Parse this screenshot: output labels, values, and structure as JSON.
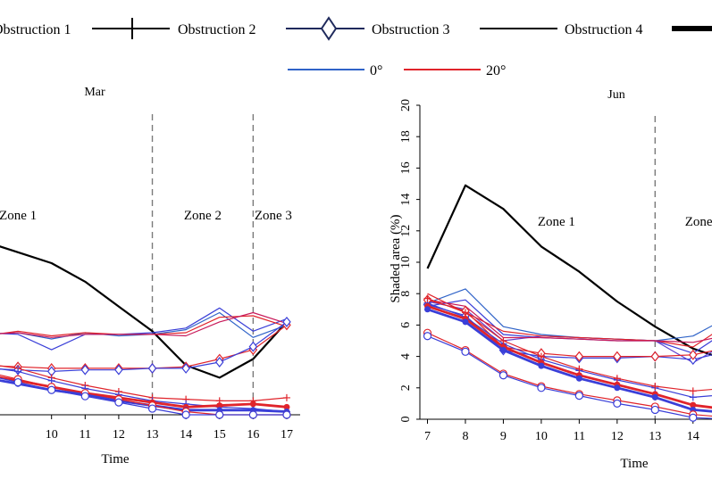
{
  "legend": {
    "items": [
      {
        "label": "Obstruction 1",
        "style": "plain",
        "color": "#000000"
      },
      {
        "label": "Obstruction 2",
        "style": "plus",
        "color": "#000000"
      },
      {
        "label": "Obstruction 3",
        "style": "diamond",
        "color": "#1f2a5c"
      },
      {
        "label": "Obstruction 4",
        "style": "plain",
        "color": "#000000"
      },
      {
        "label": "",
        "style": "thick",
        "color": "#000000"
      }
    ],
    "angles": [
      {
        "label": "0°",
        "color": "#2f63c8"
      },
      {
        "label": "20°",
        "color": "#e0242b"
      }
    ]
  },
  "chart_data": [
    {
      "type": "line",
      "title": "Mar",
      "xlabel": "Time",
      "ylabel": "",
      "xlim": [
        8.2,
        17.4
      ],
      "ylim": [
        0,
        20
      ],
      "xticks": [
        10,
        11,
        12,
        13,
        14,
        15,
        16,
        17
      ],
      "zones": [
        {
          "label": "Zone 1",
          "x": 9.0
        },
        {
          "label": "Zone 2",
          "x": 14.5
        },
        {
          "label": "Zone 3",
          "x": 16.6
        }
      ],
      "zone_dividers": [
        13,
        16
      ],
      "series": [
        {
          "name": "Obstruction 4 (black)",
          "color": "#000000",
          "width": 2.2,
          "marker": "none",
          "x": [
            8,
            9,
            10,
            11,
            12,
            13,
            14,
            15,
            16,
            17
          ],
          "y": [
            11.2,
            10.5,
            9.8,
            8.6,
            7.0,
            5.4,
            3.2,
            2.4,
            3.6,
            6.0
          ]
        },
        {
          "name": "0° band A",
          "color": "#2f63c8",
          "width": 1.2,
          "marker": "none",
          "x": [
            8,
            9,
            10,
            11,
            12,
            13,
            14,
            15,
            16,
            17
          ],
          "y": [
            5.2,
            5.3,
            4.9,
            5.3,
            5.1,
            5.2,
            5.5,
            6.6,
            5.0,
            5.8
          ]
        },
        {
          "name": "0° band B",
          "color": "#3a3fd8",
          "width": 1.2,
          "marker": "none",
          "x": [
            8,
            9,
            10,
            11,
            12,
            13,
            14,
            15,
            16,
            17
          ],
          "y": [
            5.3,
            5.2,
            4.2,
            5.2,
            5.2,
            5.3,
            5.6,
            6.9,
            5.4,
            6.2
          ]
        },
        {
          "name": "20° band A",
          "color": "#e0242b",
          "width": 1.2,
          "marker": "none",
          "x": [
            8,
            9,
            10,
            11,
            12,
            13,
            14,
            15,
            16,
            17
          ],
          "y": [
            5.1,
            5.4,
            5.1,
            5.3,
            5.2,
            5.2,
            5.3,
            6.3,
            6.4,
            5.7
          ]
        },
        {
          "name": "20° band B",
          "color": "#c81a5a",
          "width": 1.2,
          "marker": "none",
          "x": [
            8,
            9,
            10,
            11,
            12,
            13,
            14,
            15,
            16,
            17
          ],
          "y": [
            5.2,
            5.3,
            5.0,
            5.2,
            5.2,
            5.2,
            5.1,
            6.0,
            6.6,
            5.9
          ]
        },
        {
          "name": "Obstruction 3 (20°)",
          "color": "#e0242b",
          "width": 1.2,
          "marker": "diamond",
          "x": [
            8,
            9,
            10,
            11,
            12,
            13,
            14,
            15,
            16,
            17
          ],
          "y": [
            3.2,
            3.1,
            3.0,
            3.0,
            3.0,
            3.0,
            3.1,
            3.6,
            4.2,
            5.8
          ]
        },
        {
          "name": "Obstruction 3 (0°)",
          "color": "#3a3fd8",
          "width": 1.2,
          "marker": "diamond",
          "x": [
            8,
            9,
            10,
            11,
            12,
            13,
            14,
            15,
            16,
            17
          ],
          "y": [
            3.0,
            2.9,
            2.8,
            2.9,
            2.9,
            3.0,
            3.0,
            3.4,
            4.4,
            6.0
          ]
        },
        {
          "name": "Obstruction 2 (20°)",
          "color": "#e0242b",
          "width": 1.2,
          "marker": "plus",
          "x": [
            8,
            9,
            10,
            11,
            12,
            13,
            14,
            15,
            16,
            17
          ],
          "y": [
            3.3,
            3.0,
            2.4,
            1.9,
            1.5,
            1.1,
            1.0,
            0.9,
            0.9,
            1.1
          ]
        },
        {
          "name": "Obstruction 2 (0°)",
          "color": "#3a3fd8",
          "width": 1.2,
          "marker": "plus",
          "x": [
            8,
            9,
            10,
            11,
            12,
            13,
            14,
            15,
            16,
            17
          ],
          "y": [
            3.1,
            2.8,
            2.2,
            1.7,
            1.3,
            0.9,
            0.7,
            0.5,
            0.4,
            0.2
          ]
        },
        {
          "name": "Thick (20°)",
          "color": "#e0242b",
          "width": 2.8,
          "marker": "dot",
          "x": [
            8,
            9,
            10,
            11,
            12,
            13,
            14,
            15,
            16,
            17
          ],
          "y": [
            2.6,
            2.2,
            1.8,
            1.4,
            1.1,
            0.8,
            0.5,
            0.6,
            0.7,
            0.5
          ]
        },
        {
          "name": "Thick (0°)",
          "color": "#3a3fd8",
          "width": 2.8,
          "marker": "dot",
          "x": [
            8,
            9,
            10,
            11,
            12,
            13,
            14,
            15,
            16,
            17
          ],
          "y": [
            2.4,
            2.0,
            1.6,
            1.3,
            0.9,
            0.6,
            0.3,
            0.3,
            0.3,
            0.2
          ]
        },
        {
          "name": "Obstruction 1 (20°)",
          "color": "#e0242b",
          "width": 1.2,
          "marker": "circle",
          "x": [
            8,
            9,
            10,
            11,
            12,
            13,
            14,
            15,
            16,
            17
          ],
          "y": [
            2.8,
            2.3,
            1.8,
            1.4,
            1.0,
            0.6,
            0.2,
            0.0,
            0.0,
            0.0
          ]
        },
        {
          "name": "Obstruction 1 (0°)",
          "color": "#3a3fd8",
          "width": 1.2,
          "marker": "circle",
          "x": [
            8,
            9,
            10,
            11,
            12,
            13,
            14,
            15,
            16,
            17
          ],
          "y": [
            2.6,
            2.1,
            1.6,
            1.2,
            0.8,
            0.4,
            0.0,
            0.0,
            0.0,
            0.0
          ]
        }
      ]
    },
    {
      "type": "line",
      "title": "Jun",
      "xlabel": "Time",
      "ylabel": "Shaded area (%)",
      "xlim": [
        6.8,
        14.5
      ],
      "ylim": [
        0,
        20
      ],
      "xticks": [
        7,
        8,
        9,
        10,
        11,
        12,
        13,
        14
      ],
      "yticks": [
        0,
        2,
        4,
        6,
        8,
        10,
        12,
        14,
        16,
        18,
        20
      ],
      "zones": [
        {
          "label": "Zone 1",
          "x": 10.4
        },
        {
          "label": "Zone",
          "x": 14.15
        }
      ],
      "zone_dividers": [
        13
      ],
      "series": [
        {
          "name": "Obstruction 4 (black)",
          "color": "#000000",
          "width": 2.2,
          "marker": "none",
          "x": [
            7,
            8,
            9,
            10,
            11,
            12,
            13,
            14,
            15
          ],
          "y": [
            9.6,
            14.9,
            13.4,
            11.0,
            9.4,
            7.5,
            5.9,
            4.5,
            3.7
          ]
        },
        {
          "name": "0° band A",
          "color": "#2f63c8",
          "width": 1.2,
          "marker": "none",
          "x": [
            7,
            8,
            9,
            10,
            11,
            12,
            13,
            14,
            15
          ],
          "y": [
            7.4,
            8.3,
            5.9,
            5.4,
            5.2,
            5.1,
            5.0,
            5.3,
            6.6
          ]
        },
        {
          "name": "0° band B",
          "color": "#3a3fd8",
          "width": 1.2,
          "marker": "none",
          "x": [
            7,
            8,
            9,
            10,
            11,
            12,
            13,
            14,
            15
          ],
          "y": [
            7.2,
            7.6,
            5.4,
            5.2,
            5.1,
            5.0,
            5.0,
            4.2,
            5.8
          ]
        },
        {
          "name": "0° band C",
          "color": "#5f3fd0",
          "width": 1.2,
          "marker": "none",
          "x": [
            7,
            8,
            9,
            10,
            11,
            12,
            13,
            14,
            15
          ],
          "y": [
            7.5,
            7.0,
            5.0,
            5.3,
            5.2,
            5.1,
            5.0,
            3.6,
            5.0
          ]
        },
        {
          "name": "20° band A",
          "color": "#e0242b",
          "width": 1.2,
          "marker": "none",
          "x": [
            7,
            8,
            9,
            10,
            11,
            12,
            13,
            14,
            15
          ],
          "y": [
            8.0,
            6.8,
            5.6,
            5.3,
            5.2,
            5.1,
            5.0,
            4.6,
            6.2
          ]
        },
        {
          "name": "20° band B",
          "color": "#c81a5a",
          "width": 1.2,
          "marker": "none",
          "x": [
            7,
            8,
            9,
            10,
            11,
            12,
            13,
            14,
            15
          ],
          "y": [
            7.6,
            7.2,
            5.2,
            5.2,
            5.1,
            5.0,
            5.0,
            4.9,
            5.4
          ]
        },
        {
          "name": "Obstruction 3 (0°)",
          "color": "#3a3fd8",
          "width": 1.2,
          "marker": "diamond",
          "x": [
            7,
            8,
            9,
            10,
            11,
            12,
            13,
            14,
            15
          ],
          "y": [
            7.3,
            6.6,
            4.4,
            4.0,
            3.9,
            3.9,
            4.0,
            3.8,
            4.4
          ]
        },
        {
          "name": "Obstruction 3 (20°)",
          "color": "#e0242b",
          "width": 1.2,
          "marker": "diamond",
          "x": [
            7,
            8,
            9,
            10,
            11,
            12,
            13,
            14,
            15
          ],
          "y": [
            7.6,
            6.9,
            4.6,
            4.2,
            4.0,
            4.0,
            4.0,
            4.1,
            4.6
          ]
        },
        {
          "name": "Obstruction 2 (0°)",
          "color": "#3a3fd8",
          "width": 1.2,
          "marker": "plus",
          "x": [
            7,
            8,
            9,
            10,
            11,
            12,
            13,
            14,
            15
          ],
          "y": [
            7.4,
            6.5,
            4.8,
            3.8,
            3.1,
            2.5,
            2.0,
            1.4,
            1.6
          ]
        },
        {
          "name": "Obstruction 2 (20°)",
          "color": "#e0242b",
          "width": 1.2,
          "marker": "plus",
          "x": [
            7,
            8,
            9,
            10,
            11,
            12,
            13,
            14,
            15
          ],
          "y": [
            7.7,
            6.8,
            5.0,
            4.0,
            3.2,
            2.6,
            2.1,
            1.8,
            2.0
          ]
        },
        {
          "name": "Thick (20°)",
          "color": "#e0242b",
          "width": 2.8,
          "marker": "dot",
          "x": [
            7,
            8,
            9,
            10,
            11,
            12,
            13,
            14,
            15
          ],
          "y": [
            7.2,
            6.4,
            4.6,
            3.6,
            2.8,
            2.2,
            1.6,
            0.9,
            0.6
          ]
        },
        {
          "name": "Thick (0°)",
          "color": "#3a3fd8",
          "width": 2.8,
          "marker": "dot",
          "x": [
            7,
            8,
            9,
            10,
            11,
            12,
            13,
            14,
            15
          ],
          "y": [
            7.0,
            6.2,
            4.4,
            3.4,
            2.6,
            2.0,
            1.4,
            0.6,
            0.4
          ]
        },
        {
          "name": "Obstruction 1 (20°)",
          "color": "#e0242b",
          "width": 1.2,
          "marker": "circle",
          "x": [
            7,
            8,
            9,
            10,
            11,
            12,
            13,
            14,
            15
          ],
          "y": [
            5.5,
            4.4,
            2.9,
            2.1,
            1.6,
            1.2,
            0.8,
            0.3,
            0.1
          ]
        },
        {
          "name": "Obstruction 1 (0°)",
          "color": "#3a3fd8",
          "width": 1.2,
          "marker": "circle",
          "x": [
            7,
            8,
            9,
            10,
            11,
            12,
            13,
            14,
            15
          ],
          "y": [
            5.3,
            4.3,
            2.8,
            2.0,
            1.5,
            1.0,
            0.6,
            0.1,
            0.0
          ]
        }
      ]
    }
  ]
}
